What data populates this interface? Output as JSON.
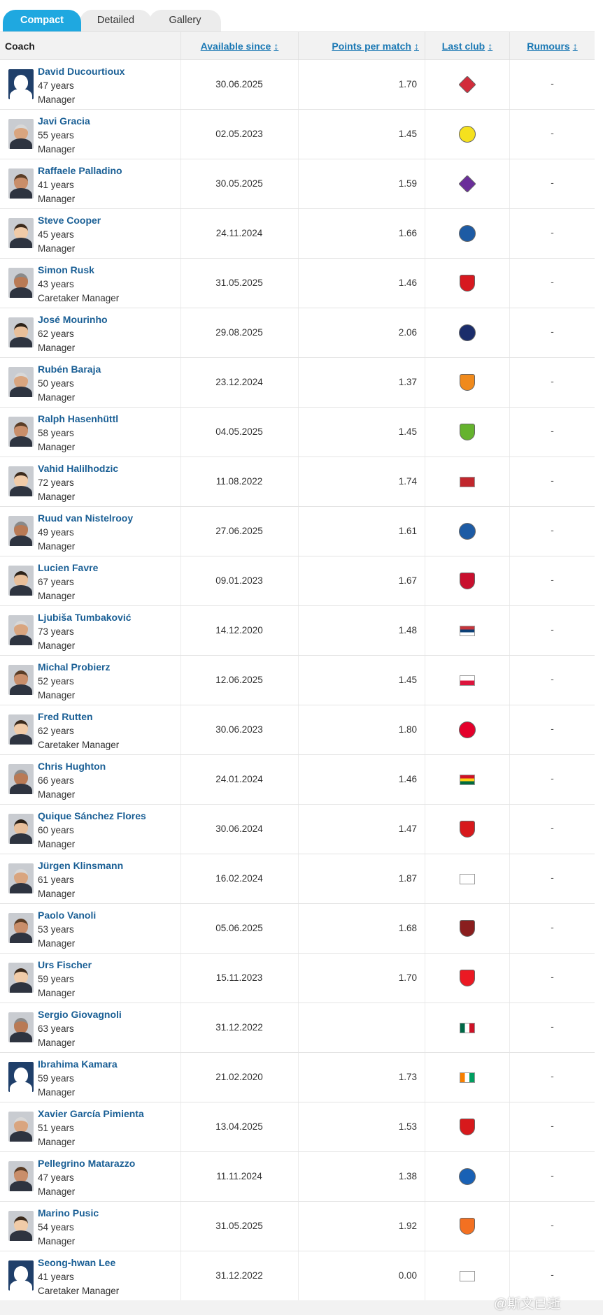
{
  "tabs": [
    "Compact",
    "Detailed",
    "Gallery"
  ],
  "columns": {
    "coach": "Coach",
    "available_since": "Available since",
    "ppm": "Points per match",
    "last_club": "Last club",
    "rumours": "Rumours",
    "sort_glyph": "↕"
  },
  "rows": [
    {
      "name": "David Ducourtioux",
      "age": "47 years",
      "position": "Manager",
      "date": "30.06.2025",
      "ppm": "1.70",
      "rumours": "-",
      "club_icon": "lille-crest",
      "club_color": "#d22c3b"
    },
    {
      "name": "Javi Gracia",
      "age": "55 years",
      "position": "Manager",
      "date": "02.05.2023",
      "ppm": "1.45",
      "rumours": "-",
      "club_icon": "leeds-crest",
      "club_color": "#f5e11e"
    },
    {
      "name": "Raffaele Palladino",
      "age": "41 years",
      "position": "Manager",
      "date": "30.05.2025",
      "ppm": "1.59",
      "rumours": "-",
      "club_icon": "fiorentina-crest",
      "club_color": "#6a2e9a"
    },
    {
      "name": "Steve Cooper",
      "age": "45 years",
      "position": "Manager",
      "date": "24.11.2024",
      "ppm": "1.66",
      "rumours": "-",
      "club_icon": "leicester-crest",
      "club_color": "#1d5ba4"
    },
    {
      "name": "Simon Rusk",
      "age": "43 years",
      "position": "Caretaker Manager",
      "date": "31.05.2025",
      "ppm": "1.46",
      "rumours": "-",
      "club_icon": "southampton-crest",
      "club_color": "#d71920"
    },
    {
      "name": "José Mourinho",
      "age": "62 years",
      "position": "Manager",
      "date": "29.08.2025",
      "ppm": "2.06",
      "rumours": "-",
      "club_icon": "fenerbahce-crest",
      "club_color": "#1b2d6b"
    },
    {
      "name": "Rubén Baraja",
      "age": "50 years",
      "position": "Manager",
      "date": "23.12.2024",
      "ppm": "1.37",
      "rumours": "-",
      "club_icon": "valencia-crest",
      "club_color": "#f08a1c"
    },
    {
      "name": "Ralph Hasenhüttl",
      "age": "58 years",
      "position": "Manager",
      "date": "04.05.2025",
      "ppm": "1.45",
      "rumours": "-",
      "club_icon": "wolfsburg-crest",
      "club_color": "#65b32e"
    },
    {
      "name": "Vahid Halilhodzic",
      "age": "72 years",
      "position": "Manager",
      "date": "11.08.2022",
      "ppm": "1.74",
      "rumours": "-",
      "club_icon": "morocco-flag",
      "club_color": "#c1272d"
    },
    {
      "name": "Ruud van Nistelrooy",
      "age": "49 years",
      "position": "Manager",
      "date": "27.06.2025",
      "ppm": "1.61",
      "rumours": "-",
      "club_icon": "leicester-crest",
      "club_color": "#1d5ba4"
    },
    {
      "name": "Lucien Favre",
      "age": "67 years",
      "position": "Manager",
      "date": "09.01.2023",
      "ppm": "1.67",
      "rumours": "-",
      "club_icon": "nice-crest",
      "club_color": "#c8102e"
    },
    {
      "name": "Ljubiša Tumbaković",
      "age": "73 years",
      "position": "Manager",
      "date": "14.12.2020",
      "ppm": "1.48",
      "rumours": "-",
      "club_icon": "serbia-flag",
      "club_color": "#c6363c"
    },
    {
      "name": "Michal Probierz",
      "age": "52 years",
      "position": "Manager",
      "date": "12.06.2025",
      "ppm": "1.45",
      "rumours": "-",
      "club_icon": "poland-flag",
      "club_color": "#dc143c"
    },
    {
      "name": "Fred Rutten",
      "age": "62 years",
      "position": "Caretaker Manager",
      "date": "30.06.2023",
      "ppm": "1.80",
      "rumours": "-",
      "club_icon": "psv-crest",
      "club_color": "#e4002b"
    },
    {
      "name": "Chris Hughton",
      "age": "66 years",
      "position": "Manager",
      "date": "24.01.2024",
      "ppm": "1.46",
      "rumours": "-",
      "club_icon": "ghana-flag",
      "club_color": "#006b3f"
    },
    {
      "name": "Quique Sánchez Flores",
      "age": "60 years",
      "position": "Manager",
      "date": "30.06.2024",
      "ppm": "1.47",
      "rumours": "-",
      "club_icon": "sevilla-crest",
      "club_color": "#d7191c"
    },
    {
      "name": "Jürgen Klinsmann",
      "age": "61 years",
      "position": "Manager",
      "date": "16.02.2024",
      "ppm": "1.87",
      "rumours": "-",
      "club_icon": "korea-flag",
      "club_color": "#003478"
    },
    {
      "name": "Paolo Vanoli",
      "age": "53 years",
      "position": "Manager",
      "date": "05.06.2025",
      "ppm": "1.68",
      "rumours": "-",
      "club_icon": "torino-crest",
      "club_color": "#8a1e1e"
    },
    {
      "name": "Urs Fischer",
      "age": "59 years",
      "position": "Manager",
      "date": "15.11.2023",
      "ppm": "1.70",
      "rumours": "-",
      "club_icon": "union-berlin-crest",
      "club_color": "#eb1923"
    },
    {
      "name": "Sergio Giovagnoli",
      "age": "63 years",
      "position": "Manager",
      "date": "31.12.2022",
      "ppm": "",
      "rumours": "-",
      "club_icon": "mexico-flag",
      "club_color": "#006847"
    },
    {
      "name": "Ibrahima Kamara",
      "age": "59 years",
      "position": "Manager",
      "date": "21.02.2020",
      "ppm": "1.73",
      "rumours": "-",
      "club_icon": "ivory-coast-flag",
      "club_color": "#f77f00"
    },
    {
      "name": "Xavier García Pimienta",
      "age": "51 years",
      "position": "Manager",
      "date": "13.04.2025",
      "ppm": "1.53",
      "rumours": "-",
      "club_icon": "sevilla-crest",
      "club_color": "#d7191c"
    },
    {
      "name": "Pellegrino Matarazzo",
      "age": "47 years",
      "position": "Manager",
      "date": "11.11.2024",
      "ppm": "1.38",
      "rumours": "-",
      "club_icon": "hoffenheim-crest",
      "club_color": "#1961b5"
    },
    {
      "name": "Marino Pusic",
      "age": "54 years",
      "position": "Manager",
      "date": "31.05.2025",
      "ppm": "1.92",
      "rumours": "-",
      "club_icon": "shakhtar-crest",
      "club_color": "#f37021"
    },
    {
      "name": "Seong-hwan Lee",
      "age": "41 years",
      "position": "Caretaker Manager",
      "date": "31.12.2022",
      "ppm": "0.00",
      "rumours": "-",
      "club_icon": "korea-flag",
      "club_color": "#003478"
    }
  ],
  "watermark": "@斯文已逝"
}
